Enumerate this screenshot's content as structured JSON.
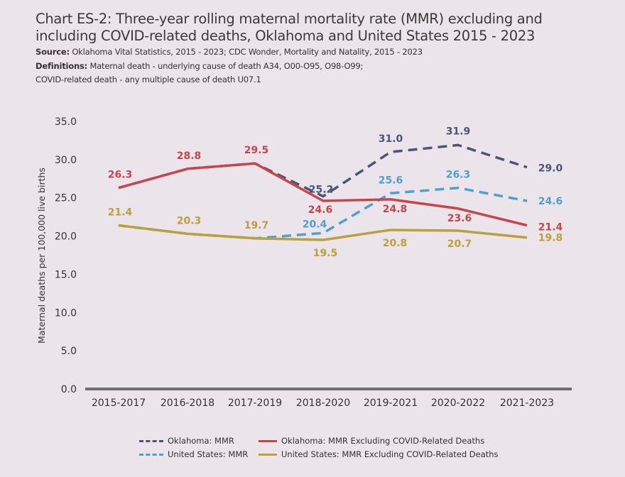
{
  "title": "Chart ES-2: Three-year rolling maternal mortality rate (MMR) excluding and including COVID-related deaths, Oklahoma and United States 2015 - 2023",
  "source_label": "Source:",
  "source_text": "Oklahoma Vital Statistics, 2015 - 2023; CDC Wonder, Mortality and Natality, 2015 - 2023",
  "definitions_label": "Definitions:",
  "definitions_text": "Maternal death - underlying cause of death A34, O00-O95, O98-O99;",
  "definitions_text2": "COVID-related death - any multiple cause of death U07.1",
  "chart_data": {
    "type": "line",
    "ylabel": "Maternal deaths per 100,000 live births",
    "ylim": [
      0,
      35
    ],
    "yticks": [
      "0.0",
      "5.0",
      "10.0",
      "15.0",
      "20.0",
      "25.0",
      "30.0",
      "35.0"
    ],
    "categories": [
      "2015-2017",
      "2016-2018",
      "2017-2019",
      "2018-2020",
      "2019-2021",
      "2020-2022",
      "2021-2023"
    ],
    "grid": false,
    "legend_position": "bottom",
    "series": [
      {
        "name": "Oklahoma: MMR",
        "style": "dashed",
        "color": "#4a5578",
        "values": [
          26.3,
          28.8,
          29.5,
          25.2,
          31.0,
          31.9,
          29.0
        ]
      },
      {
        "name": "United States: MMR",
        "style": "dashed",
        "color": "#4f9fcf",
        "values": [
          21.4,
          20.3,
          19.7,
          20.4,
          25.6,
          26.3,
          24.6
        ]
      },
      {
        "name": "Oklahoma: MMR Excluding COVID-Related Deaths",
        "style": "solid",
        "color": "#c5474d",
        "values": [
          26.3,
          28.8,
          29.5,
          24.6,
          24.8,
          23.6,
          21.4
        ]
      },
      {
        "name": "United States: MMR Excluding COVID-Related Deaths",
        "style": "solid",
        "color": "#bba13c",
        "values": [
          21.4,
          20.3,
          19.7,
          19.5,
          20.8,
          20.7,
          19.8
        ]
      }
    ]
  }
}
